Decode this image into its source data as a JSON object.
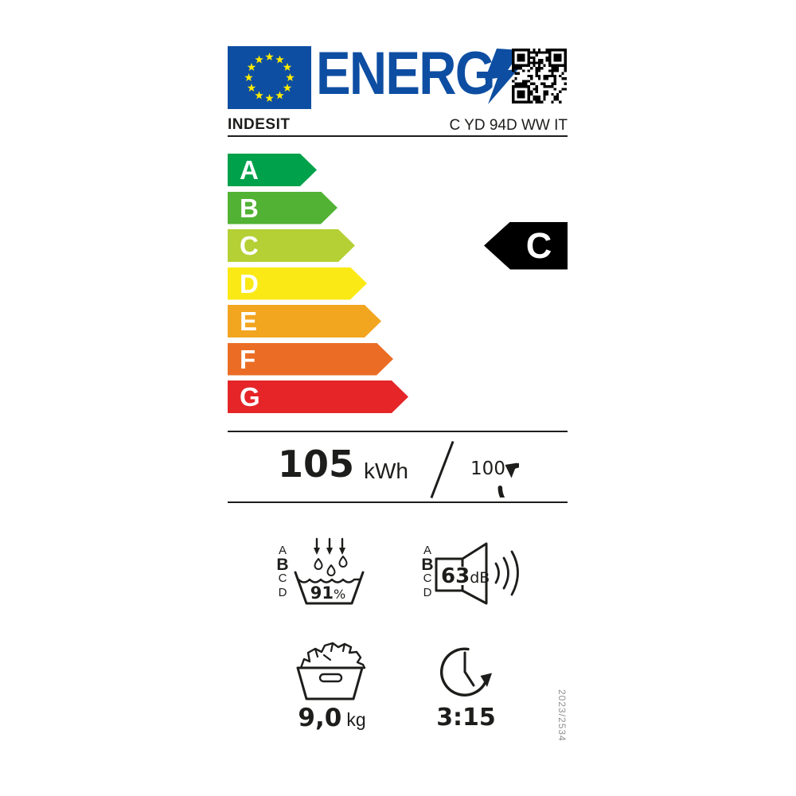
{
  "label": {
    "logo_text": "ENERG",
    "supplier": "INDESIT",
    "model": "C YD 94D WW IT",
    "regulation": "2023/2534",
    "colors": {
      "eu_blue": "#0D4EA2",
      "star_yellow": "#FFEC00",
      "ink": "#1d1d1b"
    }
  },
  "icons": {
    "flag": "eu-flag",
    "bolt": "lightning-bolt-icon",
    "qr": "qr-code",
    "cycles": "circular-arrow-icon",
    "condensation": "water-drops-basin-icon",
    "noise": "speaker-icon",
    "capacity": "laundry-basket-icon",
    "duration": "clock-icon"
  },
  "efficiency_scale": {
    "rated_class": "C",
    "classes": [
      {
        "label": "A",
        "color": "#00A14B"
      },
      {
        "label": "B",
        "color": "#52B234"
      },
      {
        "label": "C",
        "color": "#B4D034"
      },
      {
        "label": "D",
        "color": "#FBE916"
      },
      {
        "label": "E",
        "color": "#F2A51F"
      },
      {
        "label": "F",
        "color": "#EB6D25"
      },
      {
        "label": "G",
        "color": "#E52528"
      }
    ]
  },
  "energy": {
    "value": "105",
    "unit": "kWh",
    "per_cycles": "100"
  },
  "condensation": {
    "scale": [
      "A",
      "B",
      "C",
      "D"
    ],
    "rated": "B",
    "value": "91",
    "unit": "%"
  },
  "noise": {
    "scale": [
      "A",
      "B",
      "C",
      "D"
    ],
    "rated": "B",
    "value": "63",
    "unit": "dB"
  },
  "capacity": {
    "value": "9,0",
    "unit": "kg"
  },
  "duration": {
    "value": "3:15"
  }
}
